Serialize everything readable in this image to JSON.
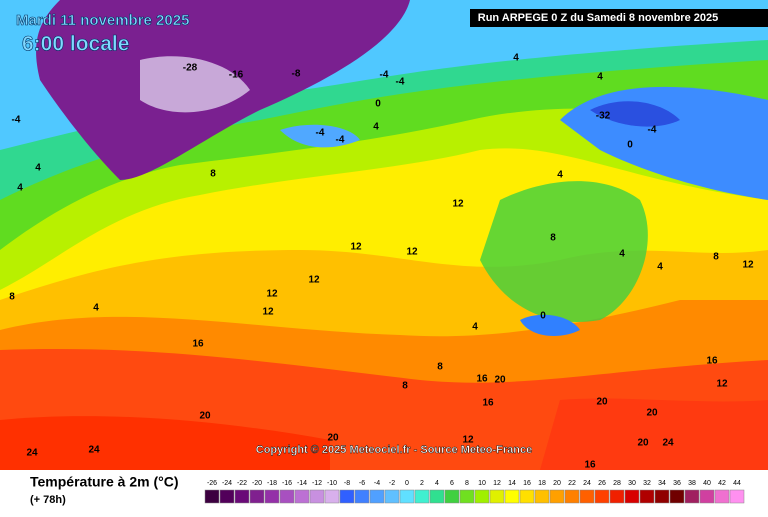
{
  "header": {
    "title": "Mardi 11 novembre 2025",
    "subtitle": "6:00 locale",
    "run": "Run ARPEGE 0 Z du Samedi 8 novembre 2025"
  },
  "map": {
    "labels": [
      "-28",
      "-16",
      "-8",
      "-4",
      "-4",
      "0",
      "4",
      "4",
      "-4",
      "-4",
      "8",
      "12",
      "12",
      "12",
      "12",
      "12",
      "12",
      "16",
      "20",
      "24",
      "24",
      "20",
      "4",
      "-32",
      "-4",
      "0",
      "4",
      "8",
      "4",
      "4",
      "8",
      "12",
      "16",
      "12",
      "20",
      "24",
      "20",
      "16",
      "20",
      "16",
      "8",
      "8",
      "0",
      "4",
      "-4",
      "4",
      "4",
      "4",
      "8",
      "20",
      "16",
      "12"
    ],
    "copyright": "Copyright © 2025 Meteociel.fr - Source Meteo-France"
  },
  "legend": {
    "title": "Température à 2m (°C)",
    "lead": "(+ 78h)",
    "ticks": [
      -26,
      -24,
      -22,
      -20,
      -18,
      -16,
      -14,
      -12,
      -10,
      -8,
      -6,
      -4,
      -2,
      0,
      2,
      4,
      6,
      8,
      10,
      12,
      14,
      16,
      18,
      20,
      22,
      24,
      26,
      28,
      30,
      32,
      34,
      36,
      38,
      40,
      42,
      44
    ],
    "colors": [
      "#3c0040",
      "#52005a",
      "#6a0a78",
      "#80208f",
      "#9430a8",
      "#a850c0",
      "#bc70d4",
      "#c890e0",
      "#d8b0ec",
      "#3060ff",
      "#4080ff",
      "#50a0ff",
      "#60c0ff",
      "#60e0ff",
      "#40f0d0",
      "#30e090",
      "#40d040",
      "#70e020",
      "#a0f000",
      "#e0f000",
      "#ffff00",
      "#ffe000",
      "#ffc000",
      "#ffa000",
      "#ff8000",
      "#ff6000",
      "#ff4000",
      "#f02000",
      "#d80000",
      "#b00000",
      "#900000",
      "#700000",
      "#a02060",
      "#d040a0",
      "#f070d0",
      "#ff90f0"
    ]
  }
}
